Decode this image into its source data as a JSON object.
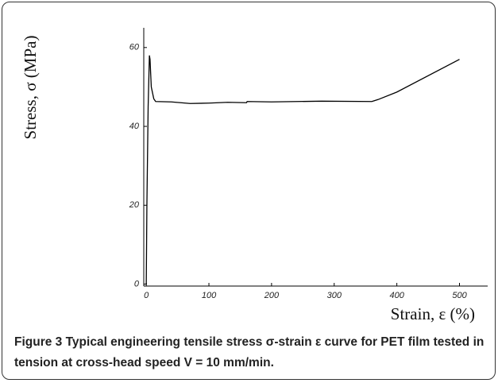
{
  "chart_data": {
    "type": "line",
    "x_label": "Strain, ε (%)",
    "y_label": "Stress, σ (MPa)",
    "x": [
      0,
      1,
      3,
      5,
      6,
      8,
      12,
      15,
      40,
      70,
      100,
      130,
      160,
      161,
      200,
      280,
      360,
      370,
      400,
      500
    ],
    "series": [
      {
        "color": "#000000",
        "values": [
          0,
          20,
          45,
          58,
          57,
          50,
          47,
          46.3,
          46.2,
          45.8,
          45.9,
          46.1,
          46.0,
          46.3,
          46.2,
          46.4,
          46.3,
          46.8,
          48.7,
          57
        ]
      }
    ],
    "xlim": [
      -4,
      545
    ],
    "ylim": [
      -0.5,
      65
    ],
    "xticks": [
      0,
      100,
      200,
      300,
      400,
      500
    ],
    "yticks": [
      0,
      20,
      40,
      60
    ]
  },
  "caption": {
    "label": "Figure 3",
    "text": "Typical engineering tensile stress σ-strain ε curve for PET film tested in tension at cross-head speed V = 10 mm/min."
  }
}
